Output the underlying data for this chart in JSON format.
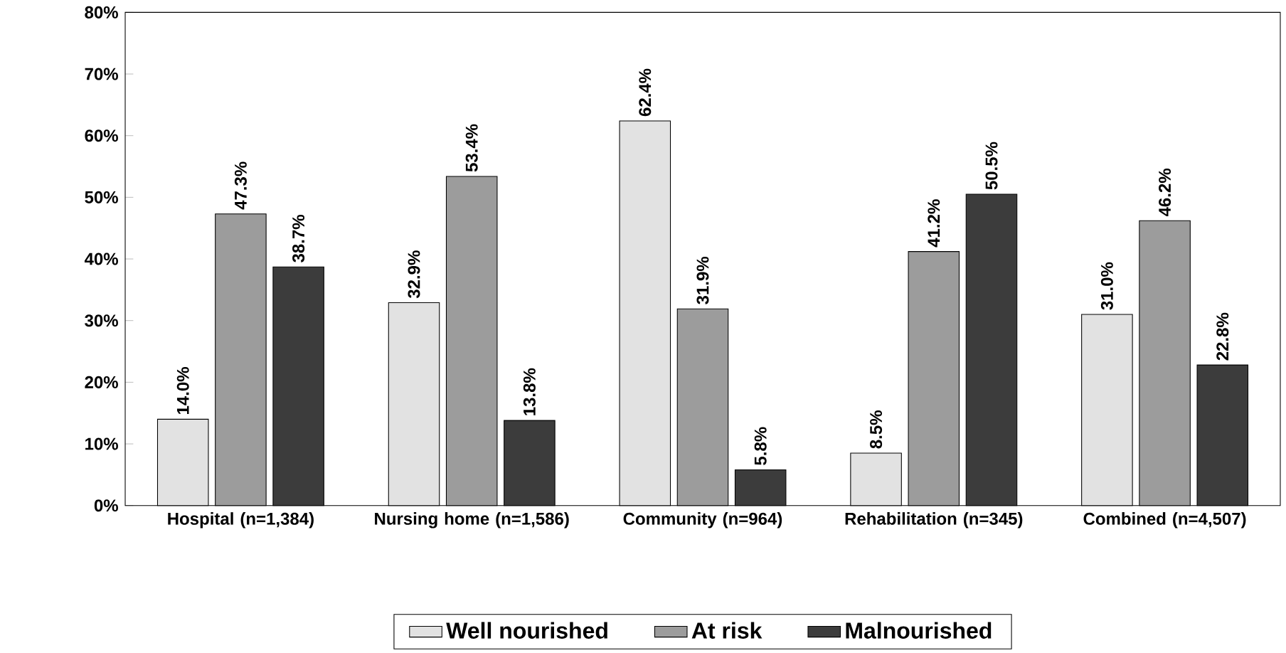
{
  "chart_data": {
    "type": "bar",
    "categories": [
      "Hospital (n=1,384)",
      "Nursing home (n=1,586)",
      "Community (n=964)",
      "Rehabilitation (n=345)",
      "Combined (n=4,507)"
    ],
    "series": [
      {
        "name": "Well nourished",
        "color": "#e2e2e2",
        "values": [
          14.0,
          32.9,
          62.4,
          8.5,
          31.0
        ],
        "value_labels": [
          "14.0%",
          "32.9%",
          "62.4%",
          "8.5%",
          "31.0%"
        ]
      },
      {
        "name": "At risk",
        "color": "#9c9c9c",
        "values": [
          47.3,
          53.4,
          31.9,
          41.2,
          46.2
        ],
        "value_labels": [
          "47.3%",
          "53.4%",
          "31.9%",
          "41.2%",
          "46.2%"
        ]
      },
      {
        "name": "Malnourished",
        "color": "#3c3c3c",
        "values": [
          38.7,
          13.8,
          5.8,
          50.5,
          22.8
        ],
        "value_labels": [
          "38.7%",
          "13.8%",
          "5.8%",
          "50.5%",
          "22.8%"
        ]
      }
    ],
    "ylim": [
      0,
      80
    ],
    "yticks": [
      {
        "value": 0,
        "label": "0%"
      },
      {
        "value": 10,
        "label": "10%"
      },
      {
        "value": 20,
        "label": "20%"
      },
      {
        "value": 30,
        "label": "30%"
      },
      {
        "value": 40,
        "label": "40%"
      },
      {
        "value": 50,
        "label": "50%"
      },
      {
        "value": 60,
        "label": "60%"
      },
      {
        "value": 70,
        "label": "70%"
      },
      {
        "value": 80,
        "label": "80%"
      }
    ],
    "legend": "bottom"
  }
}
